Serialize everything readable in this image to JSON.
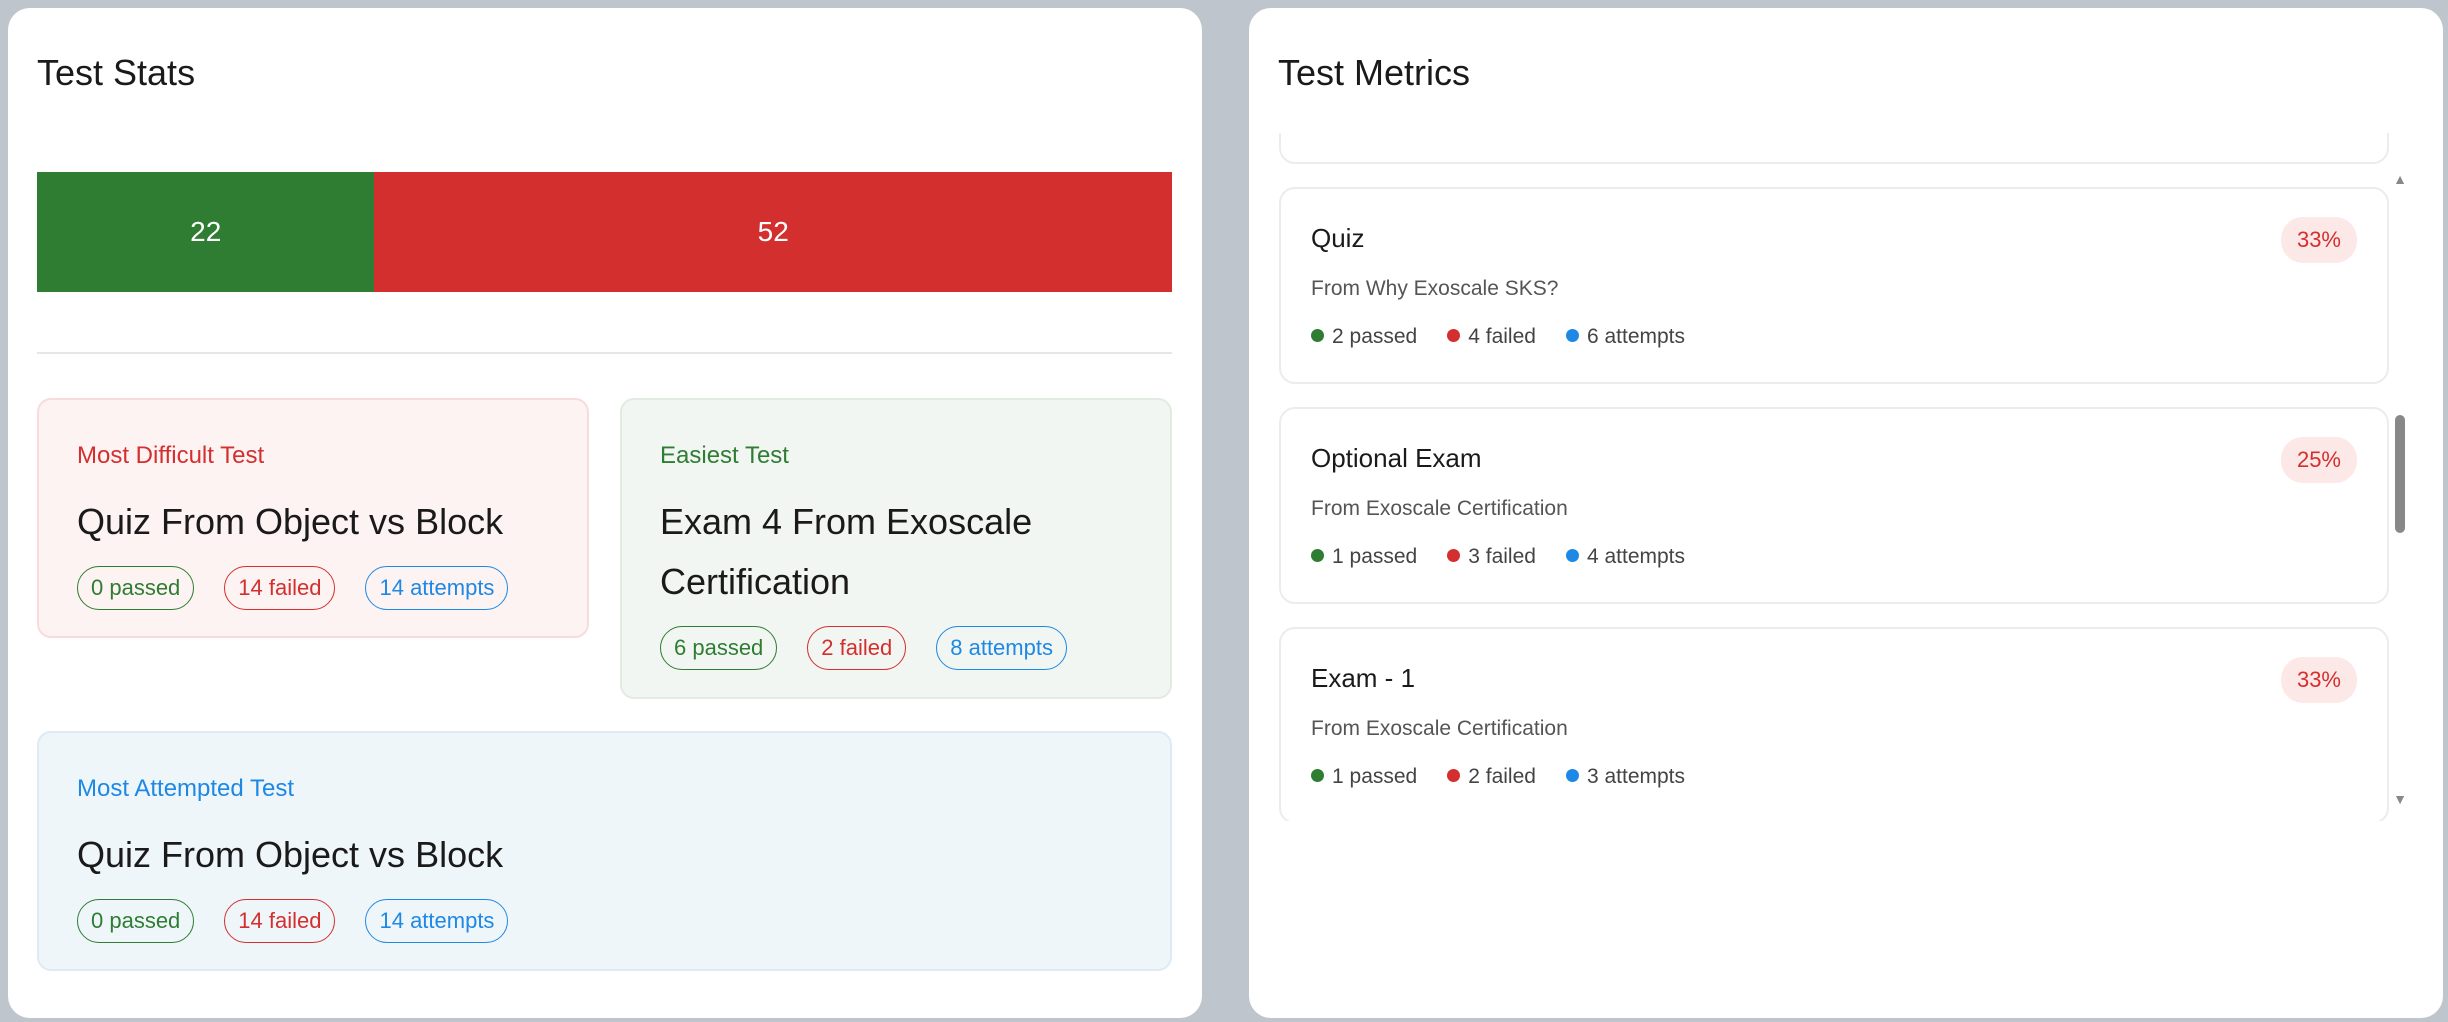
{
  "stats": {
    "title": "Test Stats",
    "bar": {
      "passed": 22,
      "failed": 52,
      "passed_color": "#2e7d32",
      "failed_color": "#d32f2f"
    },
    "most_difficult": {
      "label": "Most Difficult Test",
      "title": "Quiz From Object vs Block",
      "passed": "0 passed",
      "failed": "14 failed",
      "attempts": "14 attempts"
    },
    "easiest": {
      "label": "Easiest Test",
      "title": "Exam 4 From Exoscale Certification",
      "passed": "6 passed",
      "failed": "2 failed",
      "attempts": "8 attempts"
    },
    "most_attempted": {
      "label": "Most Attempted Test",
      "title": "Quiz From Object vs Block",
      "passed": "0 passed",
      "failed": "14 failed",
      "attempts": "14 attempts"
    }
  },
  "metrics": {
    "title": "Test Metrics",
    "items": [
      {
        "title": "Quiz",
        "subtitle": "From Why Exoscale SKS?",
        "passed": "2 passed",
        "failed": "4 failed",
        "attempts": "6 attempts",
        "rate": "33%"
      },
      {
        "title": "Optional Exam",
        "subtitle": "From Exoscale Certification",
        "passed": "1 passed",
        "failed": "3 failed",
        "attempts": "4 attempts",
        "rate": "25%"
      },
      {
        "title": "Exam - 1",
        "subtitle": "From Exoscale Certification",
        "passed": "1 passed",
        "failed": "2 failed",
        "attempts": "3 attempts",
        "rate": "33%"
      }
    ]
  }
}
